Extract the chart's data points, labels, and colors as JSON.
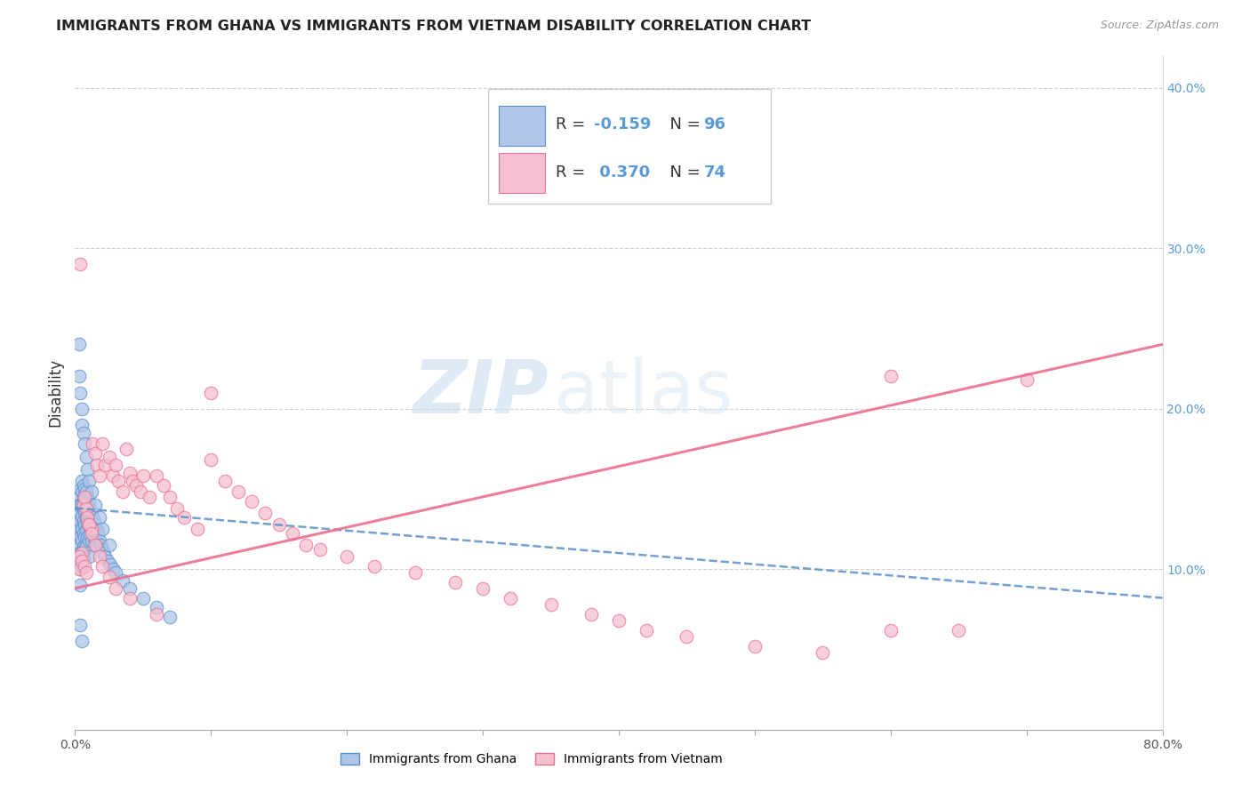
{
  "title": "IMMIGRANTS FROM GHANA VS IMMIGRANTS FROM VIETNAM DISABILITY CORRELATION CHART",
  "source": "Source: ZipAtlas.com",
  "ylabel": "Disability",
  "x_min": 0.0,
  "x_max": 0.8,
  "y_min": 0.0,
  "y_max": 0.42,
  "x_ticks": [
    0.0,
    0.1,
    0.2,
    0.3,
    0.4,
    0.5,
    0.6,
    0.7,
    0.8
  ],
  "x_tick_labels": [
    "0.0%",
    "",
    "",
    "",
    "",
    "",
    "",
    "",
    "80.0%"
  ],
  "y_ticks": [
    0.0,
    0.1,
    0.2,
    0.3,
    0.4
  ],
  "y_tick_labels_right": [
    "",
    "10.0%",
    "20.0%",
    "30.0%",
    "40.0%"
  ],
  "ghana_color": "#aec6e8",
  "ghana_edge_color": "#5b8fc9",
  "vietnam_color": "#f5c0d0",
  "vietnam_edge_color": "#e87090",
  "legend_ghana_label": "Immigrants from Ghana",
  "legend_vietnam_label": "Immigrants from Vietnam",
  "watermark_zip": "ZIP",
  "watermark_atlas": "atlas",
  "ghana_scatter_x": [
    0.002,
    0.002,
    0.002,
    0.003,
    0.003,
    0.003,
    0.003,
    0.003,
    0.003,
    0.004,
    0.004,
    0.004,
    0.004,
    0.004,
    0.004,
    0.004,
    0.005,
    0.005,
    0.005,
    0.005,
    0.005,
    0.005,
    0.005,
    0.005,
    0.006,
    0.006,
    0.006,
    0.006,
    0.006,
    0.006,
    0.006,
    0.007,
    0.007,
    0.007,
    0.007,
    0.007,
    0.007,
    0.008,
    0.008,
    0.008,
    0.008,
    0.008,
    0.009,
    0.009,
    0.009,
    0.009,
    0.01,
    0.01,
    0.01,
    0.01,
    0.01,
    0.011,
    0.011,
    0.011,
    0.012,
    0.012,
    0.012,
    0.013,
    0.013,
    0.014,
    0.014,
    0.015,
    0.015,
    0.016,
    0.016,
    0.017,
    0.018,
    0.019,
    0.02,
    0.021,
    0.022,
    0.024,
    0.026,
    0.028,
    0.03,
    0.035,
    0.04,
    0.05,
    0.06,
    0.07,
    0.003,
    0.004,
    0.005,
    0.005,
    0.006,
    0.007,
    0.008,
    0.009,
    0.01,
    0.012,
    0.015,
    0.018,
    0.02,
    0.025,
    0.003,
    0.004,
    0.005
  ],
  "ghana_scatter_y": [
    0.13,
    0.12,
    0.11,
    0.145,
    0.14,
    0.135,
    0.125,
    0.115,
    0.105,
    0.15,
    0.14,
    0.13,
    0.12,
    0.11,
    0.1,
    0.09,
    0.155,
    0.148,
    0.14,
    0.133,
    0.125,
    0.118,
    0.11,
    0.102,
    0.152,
    0.145,
    0.138,
    0.13,
    0.122,
    0.114,
    0.106,
    0.15,
    0.143,
    0.136,
    0.128,
    0.12,
    0.112,
    0.148,
    0.14,
    0.132,
    0.124,
    0.115,
    0.145,
    0.137,
    0.129,
    0.12,
    0.142,
    0.135,
    0.127,
    0.118,
    0.108,
    0.138,
    0.13,
    0.121,
    0.135,
    0.127,
    0.118,
    0.132,
    0.122,
    0.13,
    0.12,
    0.128,
    0.118,
    0.125,
    0.115,
    0.122,
    0.118,
    0.115,
    0.112,
    0.11,
    0.108,
    0.105,
    0.103,
    0.1,
    0.098,
    0.093,
    0.088,
    0.082,
    0.076,
    0.07,
    0.22,
    0.21,
    0.2,
    0.19,
    0.185,
    0.178,
    0.17,
    0.162,
    0.155,
    0.148,
    0.14,
    0.132,
    0.125,
    0.115,
    0.24,
    0.065,
    0.055
  ],
  "vietnam_scatter_x": [
    0.003,
    0.004,
    0.005,
    0.006,
    0.007,
    0.008,
    0.009,
    0.01,
    0.012,
    0.013,
    0.015,
    0.016,
    0.018,
    0.02,
    0.022,
    0.025,
    0.028,
    0.03,
    0.032,
    0.035,
    0.038,
    0.04,
    0.042,
    0.045,
    0.048,
    0.05,
    0.055,
    0.06,
    0.065,
    0.07,
    0.075,
    0.08,
    0.09,
    0.1,
    0.11,
    0.12,
    0.13,
    0.14,
    0.15,
    0.16,
    0.17,
    0.18,
    0.2,
    0.22,
    0.25,
    0.28,
    0.3,
    0.32,
    0.35,
    0.38,
    0.4,
    0.42,
    0.45,
    0.5,
    0.55,
    0.6,
    0.65,
    0.7,
    0.003,
    0.005,
    0.007,
    0.008,
    0.01,
    0.012,
    0.015,
    0.018,
    0.02,
    0.025,
    0.03,
    0.04,
    0.06,
    0.1,
    0.6
  ],
  "vietnam_scatter_y": [
    0.1,
    0.29,
    0.11,
    0.14,
    0.145,
    0.138,
    0.132,
    0.128,
    0.125,
    0.178,
    0.172,
    0.165,
    0.158,
    0.178,
    0.165,
    0.17,
    0.158,
    0.165,
    0.155,
    0.148,
    0.175,
    0.16,
    0.155,
    0.152,
    0.148,
    0.158,
    0.145,
    0.158,
    0.152,
    0.145,
    0.138,
    0.132,
    0.125,
    0.168,
    0.155,
    0.148,
    0.142,
    0.135,
    0.128,
    0.122,
    0.115,
    0.112,
    0.108,
    0.102,
    0.098,
    0.092,
    0.088,
    0.082,
    0.078,
    0.072,
    0.068,
    0.062,
    0.058,
    0.052,
    0.048,
    0.062,
    0.062,
    0.218,
    0.108,
    0.105,
    0.102,
    0.098,
    0.128,
    0.122,
    0.115,
    0.108,
    0.102,
    0.095,
    0.088,
    0.082,
    0.072,
    0.21,
    0.22
  ],
  "ghana_trend_x": [
    0.0,
    0.8
  ],
  "ghana_trend_y": [
    0.138,
    0.082
  ],
  "vietnam_trend_x": [
    0.0,
    0.8
  ],
  "vietnam_trend_y": [
    0.088,
    0.24
  ]
}
